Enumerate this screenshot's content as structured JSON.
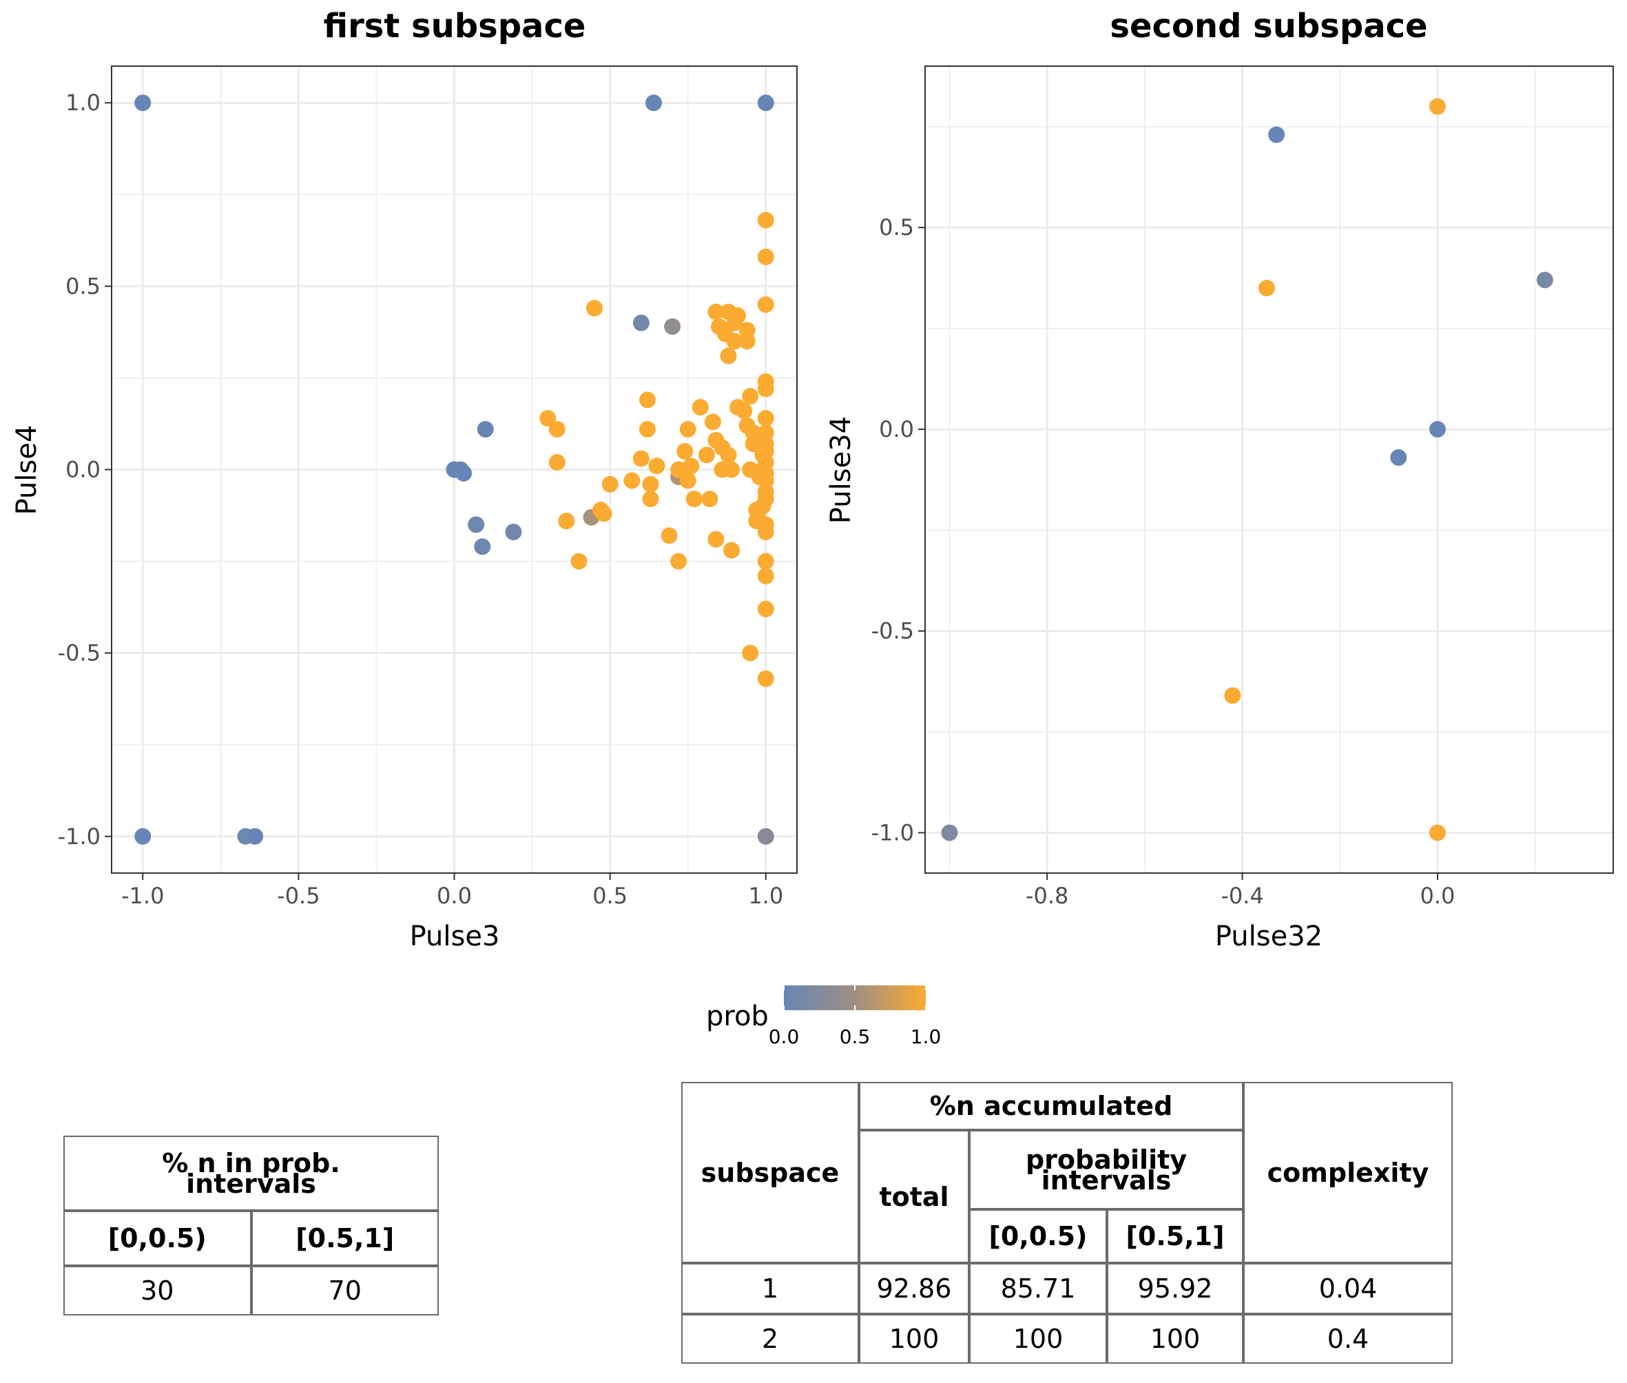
{
  "colors": {
    "low": "#6786b5",
    "mid": "#9e8f83",
    "high": "#fbab32",
    "grid": "#ebebeb",
    "panel_border": "#333333"
  },
  "chart_data": [
    {
      "type": "scatter",
      "title": "first subspace",
      "xlabel": "Pulse3",
      "ylabel": "Pulse4",
      "xlim": [
        -1.1,
        1.1
      ],
      "ylim": [
        -1.1,
        1.1
      ],
      "xticks": [
        -1.0,
        -0.5,
        0.0,
        0.5,
        1.0
      ],
      "yticks": [
        -1.0,
        -0.5,
        0.0,
        0.5,
        1.0
      ],
      "xtick_labels": [
        "-1.0",
        "-0.5",
        "0.0",
        "0.5",
        "1.0"
      ],
      "ytick_labels": [
        "-1.0",
        "-0.5",
        "0.0",
        "0.5",
        "1.0"
      ],
      "grid": true,
      "color_variable": "prob",
      "points": [
        {
          "x": -1.0,
          "y": 1.0,
          "prob": 0.0
        },
        {
          "x": 0.64,
          "y": 1.0,
          "prob": 0.0
        },
        {
          "x": 1.0,
          "y": 1.0,
          "prob": 0.0
        },
        {
          "x": -1.0,
          "y": -1.0,
          "prob": 0.0
        },
        {
          "x": -0.67,
          "y": -1.0,
          "prob": 0.05
        },
        {
          "x": -0.64,
          "y": -1.0,
          "prob": 0.0
        },
        {
          "x": 1.0,
          "y": -1.0,
          "prob": 0.3
        },
        {
          "x": 0.0,
          "y": 0.0,
          "prob": 0.0
        },
        {
          "x": 0.02,
          "y": 0.0,
          "prob": 0.0
        },
        {
          "x": 0.03,
          "y": -0.01,
          "prob": 0.0
        },
        {
          "x": 0.1,
          "y": 0.11,
          "prob": 0.0
        },
        {
          "x": 0.07,
          "y": -0.15,
          "prob": 0.05
        },
        {
          "x": 0.09,
          "y": -0.21,
          "prob": 0.05
        },
        {
          "x": 0.19,
          "y": -0.17,
          "prob": 0.1
        },
        {
          "x": 0.6,
          "y": 0.4,
          "prob": 0.1
        },
        {
          "x": 0.7,
          "y": 0.39,
          "prob": 0.4
        },
        {
          "x": 0.44,
          "y": -0.13,
          "prob": 0.55
        },
        {
          "x": 0.72,
          "y": -0.02,
          "prob": 0.6
        },
        {
          "x": 0.45,
          "y": 0.44,
          "prob": 1.0
        },
        {
          "x": 0.3,
          "y": 0.14,
          "prob": 1.0
        },
        {
          "x": 0.33,
          "y": 0.11,
          "prob": 1.0
        },
        {
          "x": 0.33,
          "y": 0.02,
          "prob": 1.0
        },
        {
          "x": 0.36,
          "y": -0.14,
          "prob": 1.0
        },
        {
          "x": 0.4,
          "y": -0.25,
          "prob": 1.0
        },
        {
          "x": 0.47,
          "y": -0.11,
          "prob": 1.0
        },
        {
          "x": 0.48,
          "y": -0.12,
          "prob": 1.0
        },
        {
          "x": 0.5,
          "y": -0.04,
          "prob": 1.0
        },
        {
          "x": 0.57,
          "y": -0.03,
          "prob": 1.0
        },
        {
          "x": 0.6,
          "y": 0.03,
          "prob": 1.0
        },
        {
          "x": 0.62,
          "y": 0.19,
          "prob": 1.0
        },
        {
          "x": 0.62,
          "y": 0.11,
          "prob": 1.0
        },
        {
          "x": 0.63,
          "y": -0.04,
          "prob": 1.0
        },
        {
          "x": 0.63,
          "y": -0.08,
          "prob": 1.0
        },
        {
          "x": 0.65,
          "y": 0.01,
          "prob": 1.0
        },
        {
          "x": 0.69,
          "y": -0.18,
          "prob": 1.0
        },
        {
          "x": 0.72,
          "y": -0.25,
          "prob": 1.0
        },
        {
          "x": 0.72,
          "y": 0.0,
          "prob": 1.0
        },
        {
          "x": 0.74,
          "y": 0.05,
          "prob": 1.0
        },
        {
          "x": 0.75,
          "y": 0.11,
          "prob": 1.0
        },
        {
          "x": 0.75,
          "y": -0.03,
          "prob": 1.0
        },
        {
          "x": 0.76,
          "y": 0.01,
          "prob": 1.0
        },
        {
          "x": 0.77,
          "y": -0.08,
          "prob": 1.0
        },
        {
          "x": 0.79,
          "y": 0.17,
          "prob": 1.0
        },
        {
          "x": 0.81,
          "y": 0.04,
          "prob": 1.0
        },
        {
          "x": 0.82,
          "y": -0.08,
          "prob": 1.0
        },
        {
          "x": 0.83,
          "y": 0.13,
          "prob": 1.0
        },
        {
          "x": 0.84,
          "y": 0.08,
          "prob": 1.0
        },
        {
          "x": 0.84,
          "y": -0.19,
          "prob": 1.0
        },
        {
          "x": 0.84,
          "y": 0.43,
          "prob": 1.0
        },
        {
          "x": 0.85,
          "y": 0.39,
          "prob": 1.0
        },
        {
          "x": 0.86,
          "y": 0.0,
          "prob": 1.0
        },
        {
          "x": 0.86,
          "y": 0.06,
          "prob": 1.0
        },
        {
          "x": 0.87,
          "y": 0.37,
          "prob": 1.0
        },
        {
          "x": 0.88,
          "y": 0.04,
          "prob": 1.0
        },
        {
          "x": 0.88,
          "y": 0.43,
          "prob": 1.0
        },
        {
          "x": 0.88,
          "y": 0.31,
          "prob": 1.0
        },
        {
          "x": 0.89,
          "y": -0.22,
          "prob": 1.0
        },
        {
          "x": 0.89,
          "y": 0.0,
          "prob": 1.0
        },
        {
          "x": 0.9,
          "y": 0.4,
          "prob": 1.0
        },
        {
          "x": 0.9,
          "y": 0.35,
          "prob": 1.0
        },
        {
          "x": 0.91,
          "y": 0.17,
          "prob": 1.0
        },
        {
          "x": 0.91,
          "y": 0.42,
          "prob": 1.0
        },
        {
          "x": 0.93,
          "y": 0.16,
          "prob": 1.0
        },
        {
          "x": 0.94,
          "y": 0.35,
          "prob": 1.0
        },
        {
          "x": 0.94,
          "y": 0.38,
          "prob": 1.0
        },
        {
          "x": 0.94,
          "y": 0.12,
          "prob": 1.0
        },
        {
          "x": 0.95,
          "y": 0.2,
          "prob": 1.0
        },
        {
          "x": 0.95,
          "y": -0.5,
          "prob": 1.0
        },
        {
          "x": 0.95,
          "y": 0.0,
          "prob": 1.0
        },
        {
          "x": 0.96,
          "y": 0.07,
          "prob": 1.0
        },
        {
          "x": 0.96,
          "y": 0.1,
          "prob": 1.0
        },
        {
          "x": 0.97,
          "y": -0.14,
          "prob": 1.0
        },
        {
          "x": 0.97,
          "y": -0.11,
          "prob": 1.0
        },
        {
          "x": 0.98,
          "y": 0.07,
          "prob": 1.0
        },
        {
          "x": 0.98,
          "y": -0.02,
          "prob": 1.0
        },
        {
          "x": 0.98,
          "y": -0.14,
          "prob": 1.0
        },
        {
          "x": 0.99,
          "y": -0.1,
          "prob": 1.0
        },
        {
          "x": 0.99,
          "y": 0.0,
          "prob": 1.0
        },
        {
          "x": 0.99,
          "y": 0.04,
          "prob": 1.0
        },
        {
          "x": 1.0,
          "y": 0.68,
          "prob": 1.0
        },
        {
          "x": 1.0,
          "y": 0.58,
          "prob": 1.0
        },
        {
          "x": 1.0,
          "y": 0.45,
          "prob": 1.0
        },
        {
          "x": 1.0,
          "y": 0.24,
          "prob": 1.0
        },
        {
          "x": 1.0,
          "y": 0.22,
          "prob": 1.0
        },
        {
          "x": 1.0,
          "y": 0.14,
          "prob": 1.0
        },
        {
          "x": 1.0,
          "y": 0.1,
          "prob": 1.0
        },
        {
          "x": 1.0,
          "y": 0.07,
          "prob": 1.0
        },
        {
          "x": 1.0,
          "y": 0.05,
          "prob": 1.0
        },
        {
          "x": 1.0,
          "y": 0.02,
          "prob": 1.0
        },
        {
          "x": 1.0,
          "y": -0.01,
          "prob": 1.0
        },
        {
          "x": 1.0,
          "y": -0.03,
          "prob": 1.0
        },
        {
          "x": 1.0,
          "y": -0.06,
          "prob": 1.0
        },
        {
          "x": 1.0,
          "y": -0.08,
          "prob": 1.0
        },
        {
          "x": 1.0,
          "y": -0.15,
          "prob": 1.0
        },
        {
          "x": 1.0,
          "y": -0.17,
          "prob": 1.0
        },
        {
          "x": 1.0,
          "y": -0.25,
          "prob": 1.0
        },
        {
          "x": 1.0,
          "y": -0.29,
          "prob": 1.0
        },
        {
          "x": 1.0,
          "y": -0.38,
          "prob": 1.0
        },
        {
          "x": 1.0,
          "y": -0.57,
          "prob": 1.0
        }
      ]
    },
    {
      "type": "scatter",
      "title": "second subspace",
      "xlabel": "Pulse32",
      "ylabel": "Pulse34",
      "xlim": [
        -1.05,
        0.36
      ],
      "ylim": [
        -1.1,
        0.9
      ],
      "xticks": [
        -0.8,
        -0.4,
        0.0
      ],
      "yticks": [
        -1.0,
        -0.5,
        0.0,
        0.5
      ],
      "xtick_labels": [
        "-0.8",
        "-0.4",
        "0.0"
      ],
      "ytick_labels": [
        "-1.0",
        "-0.5",
        "0.0",
        "0.5"
      ],
      "grid": true,
      "color_variable": "prob",
      "points": [
        {
          "x": -1.0,
          "y": -1.0,
          "prob": 0.2
        },
        {
          "x": -0.33,
          "y": 0.73,
          "prob": 0.0
        },
        {
          "x": -0.35,
          "y": 0.35,
          "prob": 1.0
        },
        {
          "x": -0.42,
          "y": -0.66,
          "prob": 1.0
        },
        {
          "x": -0.08,
          "y": -0.07,
          "prob": 0.0
        },
        {
          "x": 0.0,
          "y": 0.0,
          "prob": 0.0
        },
        {
          "x": 0.0,
          "y": 0.8,
          "prob": 1.0
        },
        {
          "x": 0.0,
          "y": -1.0,
          "prob": 1.0
        },
        {
          "x": 0.22,
          "y": 0.37,
          "prob": 0.15
        }
      ]
    }
  ],
  "legend": {
    "title": "prob",
    "ticks": [
      0.0,
      0.5,
      1.0
    ],
    "tick_labels": [
      "0.0",
      "0.5",
      "1.0"
    ],
    "placement": "bottom"
  },
  "table_left": {
    "header": "% n in prob. intervals",
    "header_line1": "% n in prob.",
    "header_line2": "intervals",
    "columns": [
      "[0,0.5)",
      "[0.5,1]"
    ],
    "values": [
      "30",
      "70"
    ]
  },
  "table_right": {
    "col_subspace": "subspace",
    "group_accumulated": "%n accumulated",
    "col_total": "total",
    "group_probability": "probability intervals",
    "group_probability_line1": "probability",
    "group_probability_line2": "intervals",
    "col_low": "[0,0.5)",
    "col_high": "[0.5,1]",
    "col_complexity": "complexity",
    "rows": [
      {
        "subspace": "1",
        "total": "92.86",
        "low": "85.71",
        "high": "95.92",
        "complexity": "0.04"
      },
      {
        "subspace": "2",
        "total": "100",
        "low": "100",
        "high": "100",
        "complexity": "0.4"
      }
    ]
  }
}
